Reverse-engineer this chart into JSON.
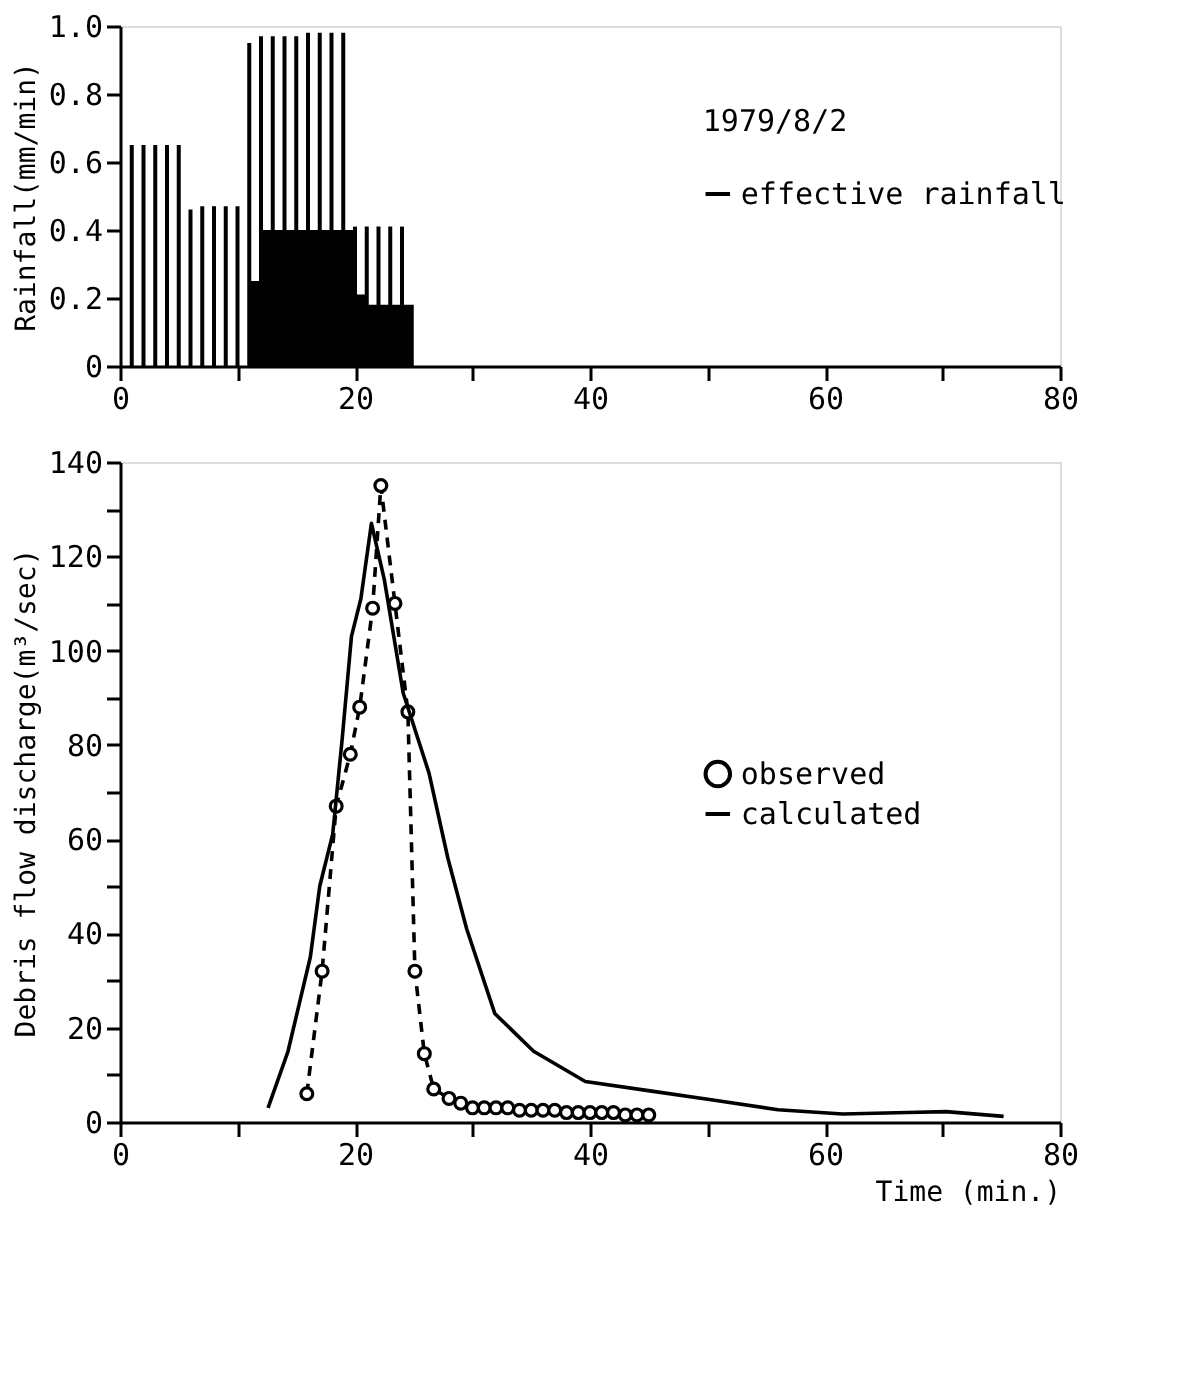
{
  "chart_data": [
    {
      "type": "bar",
      "ylabel": "Rainfall(mm/min)",
      "annotations": [
        "1979/8/2"
      ],
      "legend": "right",
      "grid": false,
      "xlim": [
        0,
        80
      ],
      "xticks": [
        0,
        {
          "value": 10,
          "label": null
        },
        20,
        {
          "value": 30,
          "label": null
        },
        40,
        {
          "value": 50,
          "label": null
        },
        60,
        {
          "value": 70,
          "label": null
        },
        80
      ],
      "ylim": [
        0,
        1.0
      ],
      "yticks": [
        0,
        0.2,
        0.4,
        0.6,
        0.8,
        {
          "value": 1.0,
          "label": "1.0"
        }
      ],
      "series": [
        {
          "color": "#000000",
          "x": [
            1,
            2,
            3,
            4,
            5,
            6,
            7,
            8,
            9,
            10,
            11,
            12,
            13,
            14,
            15,
            16,
            17,
            18,
            19,
            20,
            21,
            22,
            23,
            24
          ],
          "values": [
            0.65,
            0.65,
            0.65,
            0.65,
            0.65,
            0.46,
            0.47,
            0.47,
            0.47,
            0.47,
            0.95,
            0.97,
            0.97,
            0.97,
            0.97,
            0.98,
            0.98,
            0.98,
            0.98,
            0.41,
            0.41,
            0.41,
            0.41,
            0.41
          ]
        },
        {
          "name": "effective rainfall",
          "color": "#000000",
          "type": "area",
          "x": [
            11,
            12,
            20,
            21,
            25
          ],
          "values": [
            0.25,
            0.4,
            0.21,
            0.18,
            0.18
          ]
        }
      ]
    },
    {
      "type": "line",
      "xlabel": "Time (min.)",
      "ylabel": "Debris flow discharge(m³/sec)",
      "legend": "right",
      "grid": false,
      "xlim": [
        0,
        80
      ],
      "xticks": [
        0,
        {
          "value": 10,
          "label": null
        },
        20,
        {
          "value": 30,
          "label": null
        },
        40,
        {
          "value": 50,
          "label": null
        },
        60,
        {
          "value": 70,
          "label": null
        },
        80
      ],
      "ylim": [
        0,
        140
      ],
      "yticks": [
        0,
        {
          "value": 10,
          "label": null
        },
        20,
        {
          "value": 30,
          "label": null
        },
        40,
        {
          "value": 50,
          "label": null
        },
        60,
        {
          "value": 70,
          "label": null
        },
        80,
        {
          "value": 90,
          "label": null
        },
        100,
        {
          "value": 110,
          "label": null
        },
        120,
        {
          "value": 130,
          "label": null
        },
        140
      ],
      "series": [
        {
          "name": "observed",
          "color": "#000000",
          "type": "line",
          "marker": "circle",
          "line_style": "dashed",
          "x": [
            15.9,
            17.2,
            18.4,
            19.6,
            20.4,
            21.5,
            22.2,
            23.4,
            24.5,
            25.1,
            25.9,
            26.7,
            28,
            29,
            30,
            31,
            32,
            33,
            34,
            35,
            36,
            37,
            38,
            39,
            40,
            41,
            42,
            43,
            44,
            45
          ],
          "values": [
            6,
            32,
            67,
            78,
            88,
            109,
            135,
            110,
            87,
            32,
            14.5,
            7,
            5,
            4,
            3,
            3,
            3,
            3,
            2.5,
            2.5,
            2.5,
            2.5,
            2,
            2,
            2,
            2,
            2,
            1.5,
            1.5,
            1.5
          ]
        },
        {
          "name": "calculated",
          "color": "#000000",
          "type": "line",
          "marker": "none",
          "line_style": "solid",
          "x": [
            12.6,
            14.3,
            16.2,
            17,
            18.1,
            18.9,
            19.7,
            20.5,
            21.4,
            22.5,
            24.1,
            26.3,
            27.9,
            29.5,
            31.9,
            35.2,
            39.6,
            45.1,
            50.6,
            56,
            61.5,
            67,
            70.3,
            75.2
          ],
          "values": [
            3,
            15,
            35,
            50,
            61,
            81,
            103,
            111,
            127,
            115,
            91,
            74,
            56,
            41,
            23,
            15,
            8.6,
            6.6,
            4.6,
            2.6,
            1.7,
            2,
            2.2,
            1.2
          ]
        }
      ]
    }
  ]
}
